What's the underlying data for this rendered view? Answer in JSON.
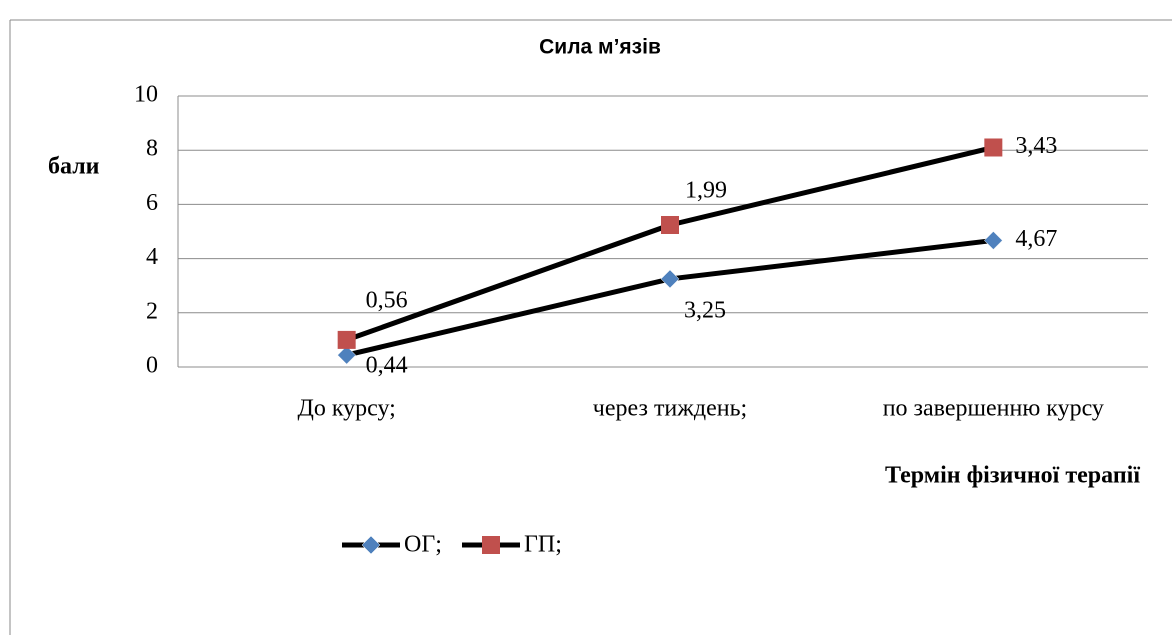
{
  "chart_data": {
    "type": "line",
    "stacked": true,
    "title": "Сила м’язів",
    "y_label": "бали",
    "x_label": "Термін фізичної терапії",
    "categories": [
      "До курсу;",
      "через тиждень;",
      "по завершенню курсу"
    ],
    "series": [
      {
        "name": "ОГ;",
        "color": "#4f81bd",
        "line_color": "#000000",
        "marker": "diamond",
        "values": [
          0.44,
          3.25,
          4.67
        ],
        "value_labels": [
          "0,44",
          "3,25",
          "4,67"
        ]
      },
      {
        "name": "ГП;",
        "color": "#c0504d",
        "line_color": "#000000",
        "marker": "square",
        "values": [
          0.56,
          1.99,
          3.43
        ],
        "value_labels": [
          "0,56",
          "1,99",
          "3,43"
        ]
      }
    ],
    "ylim": [
      0,
      10
    ],
    "yticks": [
      0,
      2,
      4,
      6,
      8,
      10
    ],
    "grid": true,
    "legend": "bottom"
  }
}
